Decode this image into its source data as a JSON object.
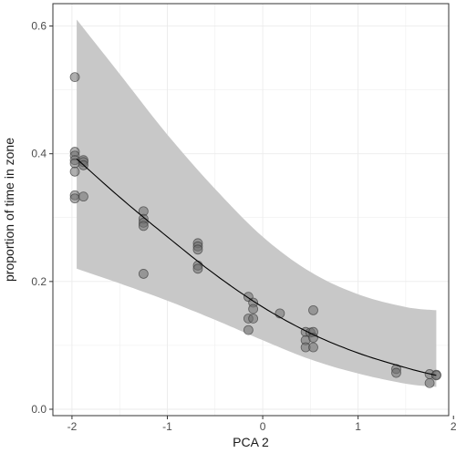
{
  "chart_data": {
    "type": "scatter",
    "title": "",
    "xlabel": "PCA 2",
    "ylabel": "proportion of time in zone",
    "xlim": [
      -2.2,
      1.95
    ],
    "ylim": [
      -0.01,
      0.635
    ],
    "x_ticks": [
      -2,
      -1,
      0,
      1,
      2
    ],
    "x_tick_labels": [
      "-2",
      "-1",
      "0",
      "1",
      "2"
    ],
    "y_ticks": [
      0.0,
      0.2,
      0.4,
      0.6
    ],
    "y_tick_labels": [
      "0.0",
      "0.2",
      "0.4",
      "0.6"
    ],
    "grid": true,
    "legend": "none",
    "colors": {
      "background": "#ffffff",
      "grid": "#ebebeb",
      "ribbon": "#c8c8c8",
      "point_fill": "#6e6e6e",
      "point_stroke": "#3a3a3a",
      "line": "#000000",
      "border": "#333333"
    },
    "points": [
      {
        "x": -1.97,
        "y": 0.52
      },
      {
        "x": -1.97,
        "y": 0.403
      },
      {
        "x": -1.97,
        "y": 0.397
      },
      {
        "x": -1.97,
        "y": 0.39
      },
      {
        "x": -1.97,
        "y": 0.385
      },
      {
        "x": -1.97,
        "y": 0.372
      },
      {
        "x": -1.97,
        "y": 0.335
      },
      {
        "x": -1.97,
        "y": 0.33
      },
      {
        "x": -1.88,
        "y": 0.39
      },
      {
        "x": -1.88,
        "y": 0.387
      },
      {
        "x": -1.88,
        "y": 0.382
      },
      {
        "x": -1.88,
        "y": 0.333
      },
      {
        "x": -1.25,
        "y": 0.31
      },
      {
        "x": -1.25,
        "y": 0.298
      },
      {
        "x": -1.25,
        "y": 0.292
      },
      {
        "x": -1.25,
        "y": 0.287
      },
      {
        "x": -1.25,
        "y": 0.212
      },
      {
        "x": -0.68,
        "y": 0.26
      },
      {
        "x": -0.68,
        "y": 0.255
      },
      {
        "x": -0.68,
        "y": 0.25
      },
      {
        "x": -0.68,
        "y": 0.225
      },
      {
        "x": -0.68,
        "y": 0.22
      },
      {
        "x": -0.15,
        "y": 0.176
      },
      {
        "x": -0.15,
        "y": 0.142
      },
      {
        "x": -0.15,
        "y": 0.124
      },
      {
        "x": -0.1,
        "y": 0.167
      },
      {
        "x": -0.1,
        "y": 0.157
      },
      {
        "x": -0.1,
        "y": 0.142
      },
      {
        "x": 0.18,
        "y": 0.15
      },
      {
        "x": 0.45,
        "y": 0.121
      },
      {
        "x": 0.45,
        "y": 0.108
      },
      {
        "x": 0.45,
        "y": 0.097
      },
      {
        "x": 0.5,
        "y": 0.12
      },
      {
        "x": 0.53,
        "y": 0.155
      },
      {
        "x": 0.53,
        "y": 0.121
      },
      {
        "x": 0.53,
        "y": 0.112
      },
      {
        "x": 0.53,
        "y": 0.097
      },
      {
        "x": 1.4,
        "y": 0.063
      },
      {
        "x": 1.4,
        "y": 0.057
      },
      {
        "x": 1.75,
        "y": 0.055
      },
      {
        "x": 1.75,
        "y": 0.041
      },
      {
        "x": 1.82,
        "y": 0.054
      },
      {
        "x": 1.82,
        "y": 0.053
      }
    ],
    "fit_line": {
      "x": [
        -1.95,
        -1.5,
        -1.0,
        -0.5,
        0.0,
        0.5,
        1.0,
        1.5,
        1.82
      ],
      "y": [
        0.392,
        0.332,
        0.27,
        0.211,
        0.16,
        0.119,
        0.088,
        0.065,
        0.053
      ]
    },
    "ribbon": {
      "x": [
        -1.95,
        -1.5,
        -1.0,
        -0.5,
        0.0,
        0.5,
        1.0,
        1.5,
        1.82
      ],
      "upper": [
        0.61,
        0.525,
        0.43,
        0.345,
        0.27,
        0.215,
        0.18,
        0.16,
        0.155
      ],
      "lower": [
        0.22,
        0.197,
        0.17,
        0.14,
        0.108,
        0.078,
        0.056,
        0.04,
        0.035
      ]
    }
  }
}
